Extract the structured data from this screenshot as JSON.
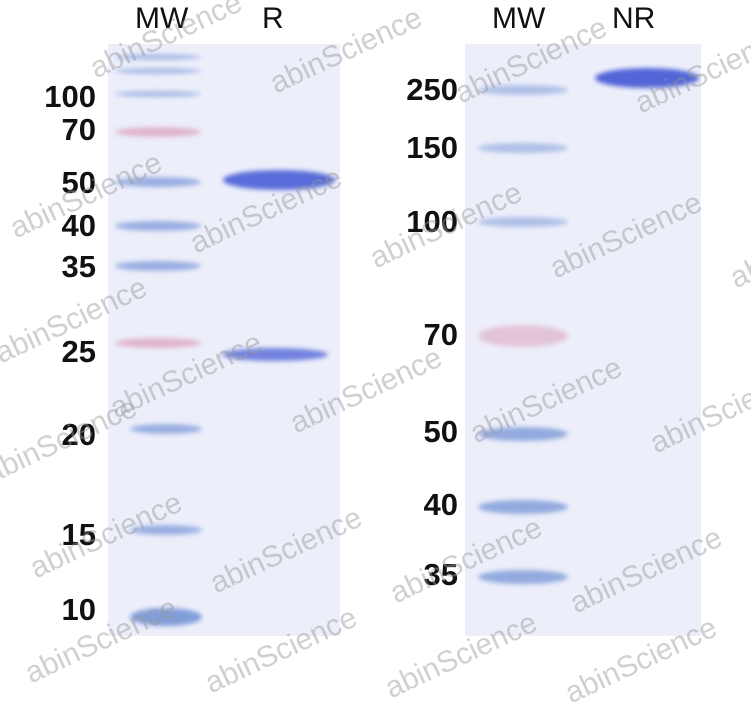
{
  "watermark": "abinScience",
  "colors": {
    "gel_background": "#eceefa",
    "marker_band": "#7d9ad8",
    "marker_pink_band": "#dca3bb",
    "sample_band": "#4a5fd6"
  },
  "left_gel": {
    "lanes": [
      "MW",
      "R"
    ],
    "markers_kda": [
      "100",
      "70",
      "50",
      "40",
      "35",
      "25",
      "20",
      "15",
      "10"
    ]
  },
  "right_gel": {
    "lanes": [
      "MW",
      "NR"
    ],
    "markers_kda": [
      "250",
      "150",
      "100",
      "70",
      "50",
      "40",
      "35"
    ]
  }
}
